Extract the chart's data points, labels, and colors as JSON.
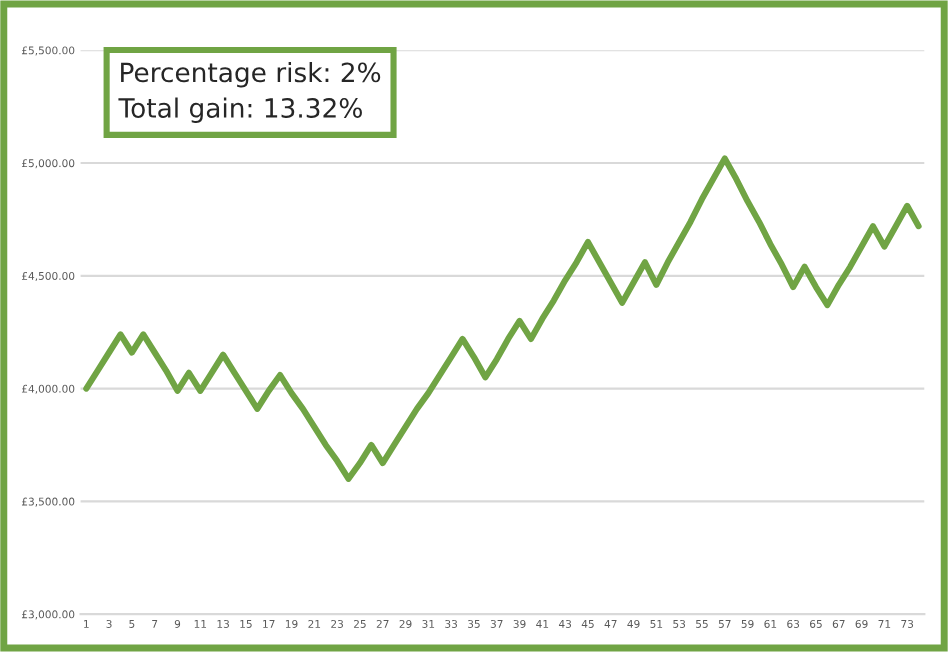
{
  "chart_data": {
    "type": "line",
    "categories": [
      "1",
      null,
      "3",
      null,
      "5",
      null,
      "7",
      null,
      "9",
      null,
      "11",
      null,
      "13",
      null,
      "15",
      null,
      "17",
      null,
      "19",
      null,
      "21",
      null,
      "23",
      null,
      "25",
      null,
      "27",
      null,
      "29",
      null,
      "31",
      null,
      "33",
      null,
      "35",
      null,
      "37",
      null,
      "39",
      null,
      "41",
      null,
      "43",
      null,
      "45",
      null,
      "47",
      null,
      "49",
      null,
      "51",
      null,
      "53",
      null,
      "55",
      null,
      "57",
      null,
      "59",
      null,
      "61",
      null,
      "63",
      null,
      "65",
      null,
      "67",
      null,
      "69",
      null,
      "71",
      null,
      "73",
      null
    ],
    "series": [
      {
        "color": "#70a444",
        "values": [
          4000,
          4080,
          4160,
          4240,
          4160,
          4240,
          4160,
          4080,
          3990,
          4070,
          3990,
          4070,
          4150,
          4070,
          3990,
          3910,
          3990,
          4060,
          3980,
          3910,
          3830,
          3750,
          3680,
          3600,
          3670,
          3750,
          3670,
          3750,
          3830,
          3910,
          3980,
          4060,
          4140,
          4220,
          4140,
          4050,
          4130,
          4220,
          4300,
          4220,
          4310,
          4390,
          4480,
          4560,
          4650,
          4560,
          4470,
          4380,
          4470,
          4560,
          4460,
          4560,
          4650,
          4740,
          4840,
          4930,
          5020,
          4930,
          4830,
          4740,
          4640,
          4550,
          4450,
          4540,
          4450,
          4370,
          4460,
          4540,
          4630,
          4720,
          4630,
          4720,
          4810,
          4720
        ]
      }
    ],
    "ylim": [
      3000,
      5500
    ],
    "yticks": [
      {
        "value": 3000,
        "label": "£3,000.00"
      },
      {
        "value": 3500,
        "label": "£3,500.00"
      },
      {
        "value": 4000,
        "label": "£4,000.00"
      },
      {
        "value": 4500,
        "label": "£4,500.00"
      },
      {
        "value": 5000,
        "label": "£5,000.00"
      },
      {
        "value": 5500,
        "label": "£5,500.00"
      }
    ],
    "grid": "y",
    "legend": false,
    "marker": "none",
    "line_style": "solid",
    "annotations": [
      "Percentage risk: 2%",
      "Total gain: 13.32%"
    ]
  }
}
